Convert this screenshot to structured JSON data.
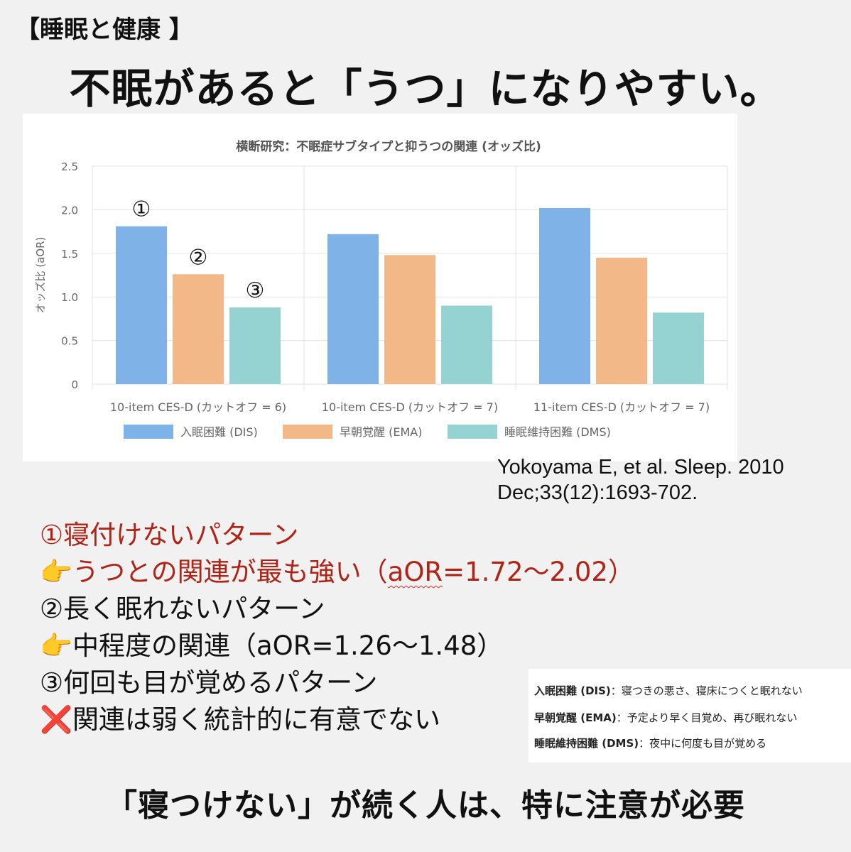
{
  "tag": "【睡眠と健康 】",
  "headline": "不眠があると「うつ」になりやすい。",
  "chart_data": {
    "type": "bar",
    "title": "横断研究：不眠症サブタイプと抑うつの関連 (オッズ比)",
    "ylabel": "オッズ比 (aOR)",
    "xlabel": "",
    "ylim": [
      0,
      2.5
    ],
    "yticks": [
      "0",
      "0.5",
      "1.0",
      "1.5",
      "2.0",
      "2.5"
    ],
    "grid": true,
    "legend_position": "bottom",
    "categories": [
      "10-item CES-D (カットオフ = 6)",
      "10-item CES-D (カットオフ = 7)",
      "11-item CES-D (カットオフ = 7)"
    ],
    "series": [
      {
        "name": "入眠困難 (DIS)",
        "color": "#7fb3e8",
        "values": [
          1.81,
          1.72,
          2.02
        ]
      },
      {
        "name": "早朝覚醒 (EMA)",
        "color": "#f2b887",
        "values": [
          1.26,
          1.48,
          1.45
        ]
      },
      {
        "name": "睡眠維持困難 (DMS)",
        "color": "#94d3d1",
        "values": [
          0.88,
          0.9,
          0.82
        ]
      }
    ],
    "annotations": [
      "①",
      "②",
      "③"
    ]
  },
  "citation": {
    "line1": "Yokoyama E, et al. Sleep. 2010",
    "line2": "Dec;33(12):1693-702."
  },
  "points": {
    "p1": "①寝付けないパターン",
    "p1_emoji": "👉",
    "p1_detail_a": "うつとの関連が最も強い（",
    "p1_detail_aor": "aOR",
    "p1_detail_b": "=1.72〜2.02）",
    "p2": "②長く眠れないパターン",
    "p2_emoji": "👉",
    "p2_detail": "中程度の関連（aOR=1.26〜1.48）",
    "p3": "③何回も目が覚めるパターン",
    "p3_emoji": "❌",
    "p3_detail": "関連は弱く統計的に有意でない"
  },
  "definitions": [
    {
      "term": "入眠困難 (DIS)",
      "desc": "：寝つきの悪さ、寝床につくと眠れない"
    },
    {
      "term": "早朝覚醒 (EMA)",
      "desc": "：予定より早く目覚め、再び眠れない"
    },
    {
      "term": "睡眠維持困難 (DMS)",
      "desc": "：夜中に何度も目が覚める"
    }
  ],
  "footer": "「寝つけない」が続く人は、特に注意が必要"
}
